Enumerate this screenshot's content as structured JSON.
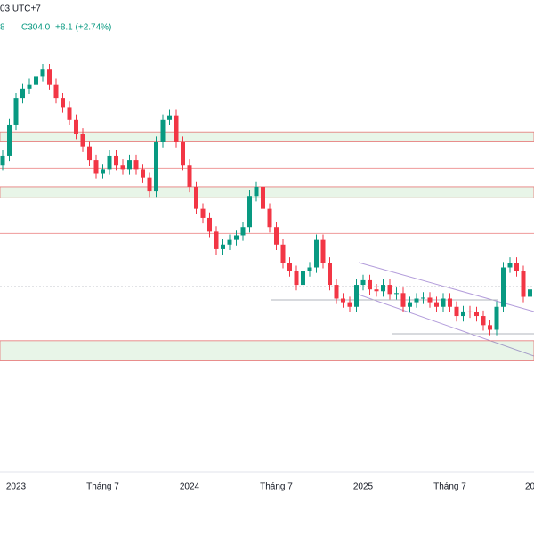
{
  "header": {
    "time": "03 UTC+7",
    "fragment": "8",
    "close": "C304.0",
    "change": "+8.1 (+2.74%)"
  },
  "chart_data": {
    "type": "candlestick",
    "categories": [
      null,
      null,
      "2023",
      null,
      null,
      null,
      null,
      null,
      null,
      null,
      null,
      null,
      null,
      null,
      null,
      "Tháng 7",
      null,
      null,
      null,
      null,
      null,
      null,
      null,
      null,
      null,
      null,
      null,
      null,
      "2024",
      null,
      null,
      null,
      null,
      null,
      null,
      null,
      null,
      null,
      null,
      null,
      null,
      "Tháng 7",
      null,
      null,
      null,
      null,
      null,
      null,
      null,
      null,
      null,
      null,
      null,
      null,
      "2025",
      null,
      null,
      null,
      null,
      null,
      null,
      null,
      null,
      null,
      null,
      null,
      null,
      "Tháng 7",
      null,
      null,
      null,
      null,
      null,
      null,
      null,
      null,
      null,
      null,
      null,
      "20"
    ],
    "open": [
      440,
      450,
      484,
      513,
      523,
      528,
      537,
      544,
      528,
      513,
      503,
      489,
      474,
      460,
      445,
      431,
      435,
      450,
      440,
      435,
      445,
      435,
      426,
      411,
      465,
      489,
      494,
      465,
      440,
      416,
      392,
      382,
      367,
      348,
      353,
      358,
      363,
      372,
      406,
      416,
      392,
      372,
      353,
      333,
      324,
      309,
      324,
      328,
      358,
      333,
      309,
      294,
      290,
      285,
      309,
      314,
      304,
      302,
      309,
      299,
      300,
      285,
      290,
      294,
      295,
      290,
      285,
      294,
      285,
      275,
      280,
      279,
      275,
      265,
      260,
      285,
      328,
      333,
      324,
      296
    ],
    "high": [
      456,
      490,
      519,
      529,
      534,
      543,
      550,
      550,
      534,
      519,
      509,
      495,
      480,
      466,
      451,
      441,
      456,
      456,
      446,
      451,
      451,
      441,
      432,
      471,
      495,
      500,
      500,
      471,
      446,
      422,
      398,
      388,
      373,
      359,
      364,
      369,
      378,
      412,
      422,
      422,
      398,
      378,
      359,
      339,
      330,
      330,
      334,
      364,
      364,
      339,
      315,
      300,
      296,
      315,
      320,
      320,
      310,
      315,
      315,
      306,
      306,
      296,
      300,
      301,
      301,
      296,
      300,
      300,
      291,
      286,
      286,
      285,
      281,
      271,
      291,
      334,
      339,
      339,
      330,
      310
    ],
    "low": [
      434,
      444,
      478,
      507,
      517,
      522,
      531,
      522,
      507,
      497,
      483,
      468,
      454,
      439,
      425,
      425,
      429,
      434,
      429,
      429,
      429,
      420,
      405,
      405,
      459,
      483,
      459,
      434,
      410,
      386,
      376,
      361,
      342,
      342,
      347,
      352,
      357,
      366,
      400,
      386,
      366,
      347,
      327,
      318,
      303,
      303,
      318,
      322,
      327,
      303,
      288,
      284,
      279,
      279,
      303,
      298,
      296,
      296,
      293,
      293,
      279,
      279,
      284,
      288,
      284,
      279,
      279,
      279,
      269,
      269,
      273,
      269,
      259,
      254,
      254,
      279,
      322,
      318,
      290,
      290
    ],
    "close": [
      450,
      484,
      513,
      523,
      528,
      537,
      544,
      528,
      513,
      503,
      489,
      474,
      460,
      445,
      431,
      435,
      450,
      440,
      435,
      445,
      435,
      426,
      411,
      465,
      489,
      494,
      465,
      440,
      416,
      392,
      382,
      367,
      348,
      353,
      358,
      363,
      372,
      406,
      416,
      392,
      372,
      353,
      333,
      324,
      309,
      324,
      328,
      358,
      333,
      309,
      294,
      290,
      285,
      309,
      314,
      304,
      302,
      309,
      299,
      300,
      285,
      290,
      294,
      295,
      290,
      285,
      294,
      285,
      275,
      280,
      279,
      275,
      265,
      260,
      285,
      328,
      333,
      324,
      295.9,
      304.0
    ],
    "up_color": "#089981",
    "down_color": "#f23645",
    "zones": [
      {
        "low": 466,
        "high": 476
      },
      {
        "low": 404,
        "high": 416
      },
      {
        "low": 226,
        "high": 248
      }
    ],
    "levels": [
      436,
      365,
      307
    ],
    "ylim": [
      105,
      620
    ]
  }
}
